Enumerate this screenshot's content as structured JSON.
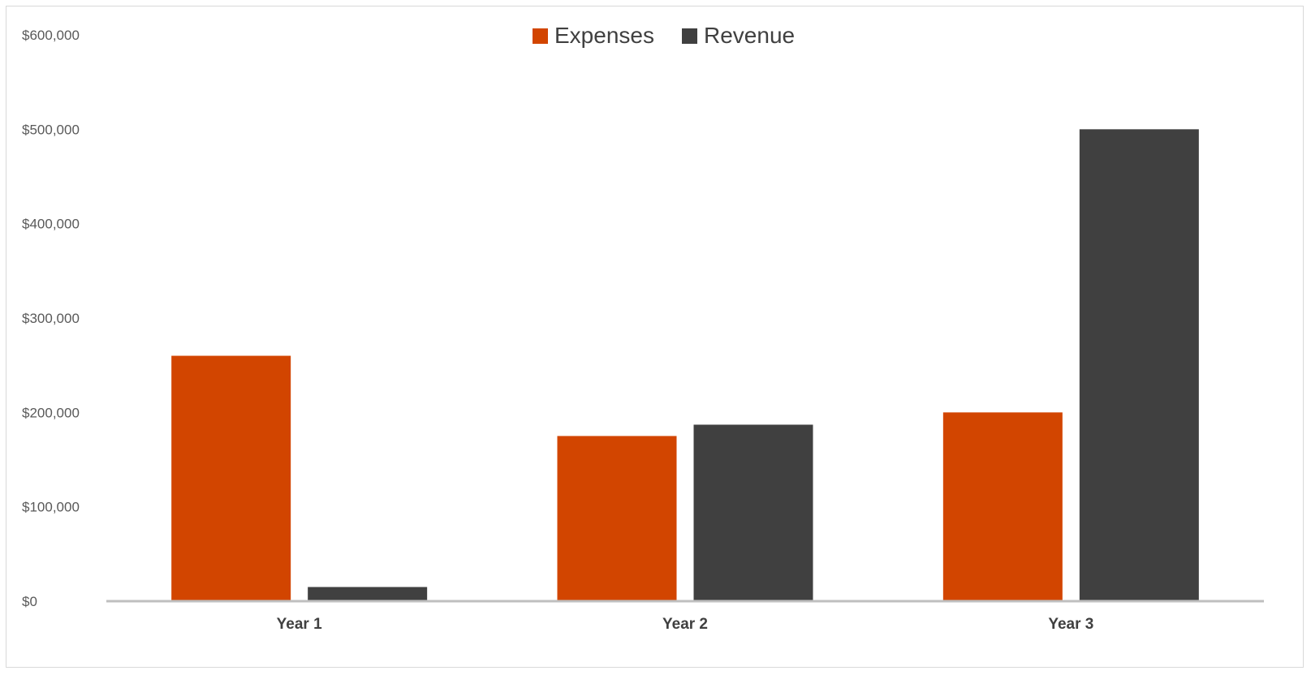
{
  "chart_data": {
    "type": "bar",
    "categories": [
      "Year 1",
      "Year 2",
      "Year 3"
    ],
    "series": [
      {
        "name": "Expenses",
        "color": "#D24500",
        "values": [
          260000,
          175000,
          200000
        ]
      },
      {
        "name": "Revenue",
        "color": "#404040",
        "values": [
          15000,
          187000,
          500000
        ]
      }
    ],
    "ylim": [
      0,
      600000
    ],
    "yticks": [
      0,
      100000,
      200000,
      300000,
      400000,
      500000,
      600000
    ],
    "ytick_labels": [
      "$0",
      "$100,000",
      "$200,000",
      "$300,000",
      "$400,000",
      "$500,000",
      "$600,000"
    ],
    "grid": false,
    "legend": {
      "position": "top",
      "entries": [
        "Expenses",
        "Revenue"
      ]
    },
    "axis_color": "#BFBFBF",
    "title": "",
    "xlabel": "",
    "ylabel": ""
  }
}
